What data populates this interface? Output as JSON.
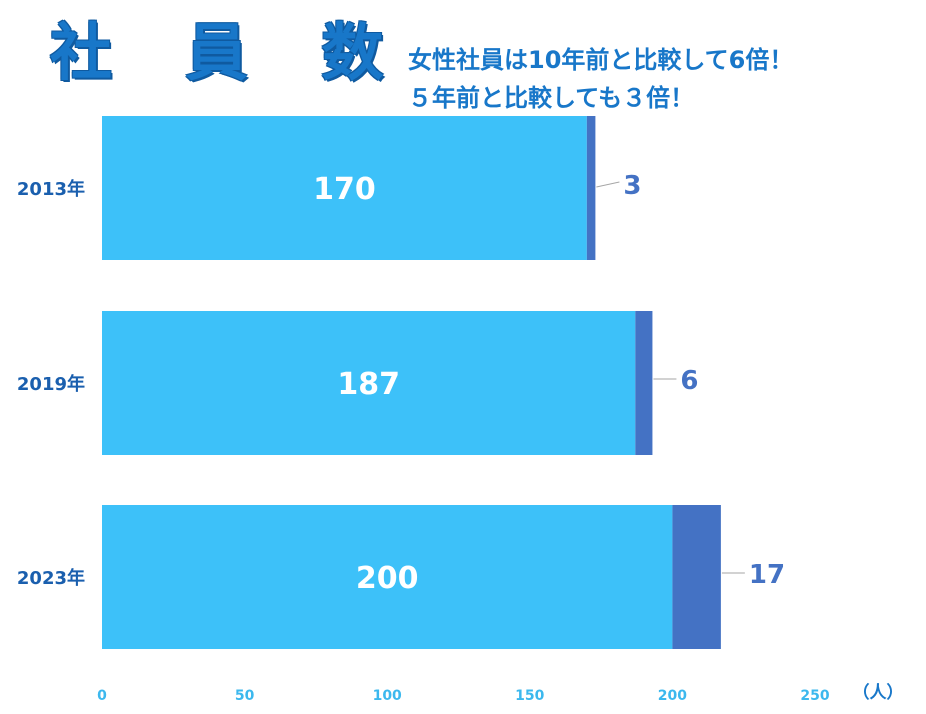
{
  "title": "社 員 数",
  "subtitle_lines": [
    "女性社員は10年前と比較して6倍！",
    "５年前と比較しても３倍！"
  ],
  "chart_data": {
    "type": "bar",
    "orientation": "horizontal",
    "stacked": true,
    "categories": [
      "2013年",
      "2019年",
      "2023年"
    ],
    "series": [
      {
        "values": [
          170,
          187,
          200
        ],
        "color": "#3dc1f9"
      },
      {
        "values": [
          3,
          6,
          17
        ],
        "color": "#4472c4"
      }
    ],
    "xlim": [
      0,
      250
    ],
    "xticks": [
      "0",
      "50",
      "100",
      "150",
      "200",
      "250"
    ],
    "unit_label": "（人）",
    "grid": false,
    "legend": "none"
  }
}
